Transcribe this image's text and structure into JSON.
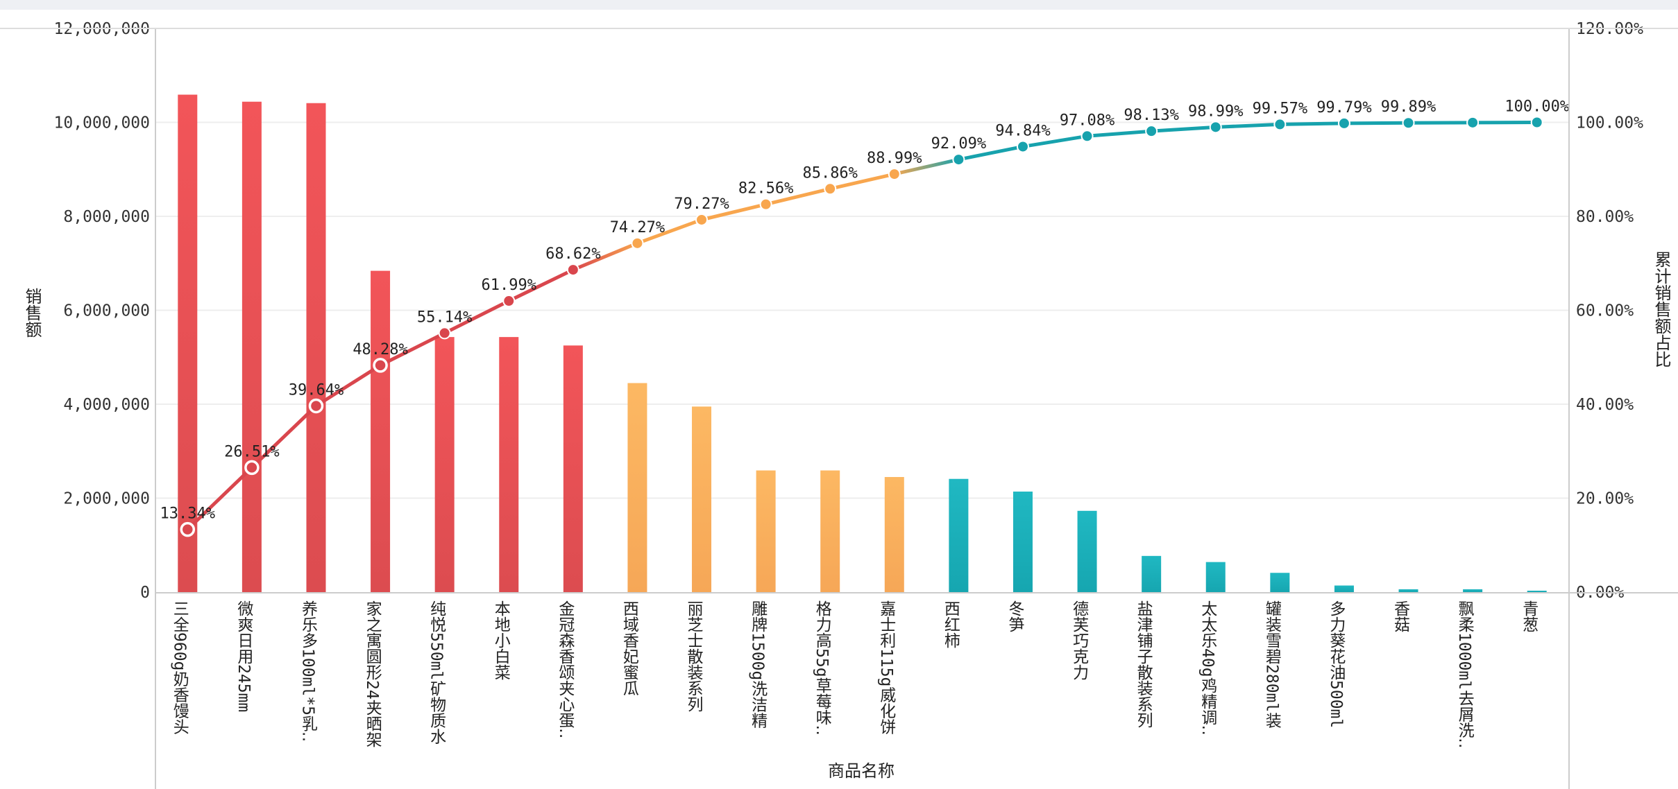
{
  "chart_data": {
    "type": "bar+line",
    "title": "",
    "xlabel": "商品名称",
    "ylabel": "销售额",
    "y2label": "累计销售额占比",
    "ylim": [
      0,
      12000000
    ],
    "y2lim": [
      0,
      120
    ],
    "yticks": [
      "0",
      "2,000,000",
      "4,000,000",
      "6,000,000",
      "8,000,000",
      "10,000,000",
      "12,000,000"
    ],
    "y2ticks": [
      "0.00%",
      "20.00%",
      "40.00%",
      "60.00%",
      "80.00%",
      "100.00%",
      "120.00%"
    ],
    "grid": true,
    "categories": [
      "三全960g奶香馒头",
      "微爽日用245mm",
      "养乐多100ml*5乳‥",
      "家之寓圆形24夹晒架",
      "纯悦550ml矿物质水",
      "本地小白菜",
      "金冠森香颂夹心蛋‥",
      "西域香妃蜜瓜",
      "丽芝士散装系列",
      "雕牌1500g洗洁精",
      "格力高55g草莓味‥",
      "嘉士利115g威化饼",
      "西红柿",
      "冬笋",
      "德芙巧克力",
      "盐津铺子散装系列",
      "太太乐40g鸡精调‥",
      "罐装雪碧280ml装",
      "多力葵花油500ml",
      "香菇",
      "飘柔1000ml去屑洗‥",
      "青葱"
    ],
    "series": [
      {
        "name": "销售额",
        "type": "bar",
        "values": [
          10590000,
          10440000,
          10410000,
          6840000,
          5430000,
          5430000,
          5250000,
          4450000,
          3950000,
          2590000,
          2590000,
          2450000,
          2410000,
          2140000,
          1730000,
          770000,
          640000,
          410000,
          140000,
          60000,
          60000,
          30000
        ]
      },
      {
        "name": "累计销售额占比",
        "type": "line",
        "values": [
          13.34,
          26.51,
          39.64,
          48.28,
          55.14,
          61.99,
          68.62,
          74.27,
          79.27,
          82.56,
          85.86,
          88.99,
          92.09,
          94.84,
          97.08,
          98.13,
          98.99,
          99.57,
          99.79,
          99.89,
          99.95,
          100.0
        ]
      },
      {
        "name": "labels",
        "values": [
          "13.34%",
          "26.51%",
          "39.64%",
          "48.28%",
          "55.14%",
          "61.99%",
          "68.62%",
          "74.27%",
          "79.27%",
          "82.56%",
          "85.86%",
          "88.99%",
          "92.09%",
          "94.84%",
          "97.08%",
          "98.13%",
          "98.99%",
          "99.57%",
          "99.79%",
          "99.89%",
          "",
          "100.00%"
        ]
      }
    ],
    "groups": [
      "A",
      "A",
      "A",
      "A",
      "A",
      "A",
      "A",
      "B",
      "B",
      "B",
      "B",
      "B",
      "C",
      "C",
      "C",
      "C",
      "C",
      "C",
      "C",
      "C",
      "C",
      "C"
    ],
    "hollow_markers": 4,
    "colors": {
      "A_bar_top": "#f25559",
      "A_bar_bottom": "#dc4c50",
      "A_line": "#d9464d",
      "B_bar_top": "#fcb863",
      "B_bar_bottom": "#f6a757",
      "B_line": "#f8a64e",
      "C_bar_top": "#20b8c2",
      "C_bar_bottom": "#16a6b0",
      "C_line": "#17a2ad",
      "grid": "#eeeeee",
      "axis": "#cccccc",
      "topbar": "#eef0f4"
    }
  }
}
